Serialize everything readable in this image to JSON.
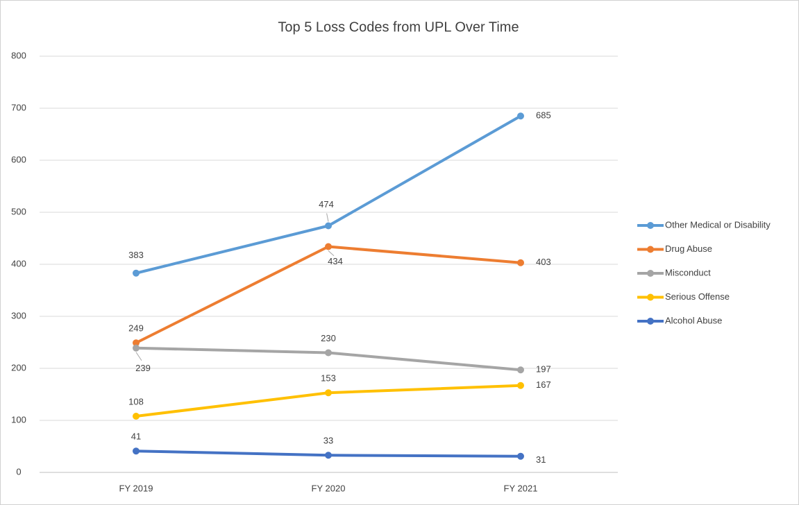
{
  "chart_data": {
    "type": "line",
    "title": "Top 5 Loss Codes from UPL Over Time",
    "categories": [
      "FY 2019",
      "FY 2020",
      "FY 2021"
    ],
    "series": [
      {
        "name": "Other Medical or Disability",
        "color": "#5b9bd5",
        "values": [
          383,
          474,
          685
        ]
      },
      {
        "name": "Drug Abuse",
        "color": "#ed7d31",
        "values": [
          249,
          434,
          403
        ]
      },
      {
        "name": "Misconduct",
        "color": "#a5a5a5",
        "values": [
          239,
          230,
          197
        ]
      },
      {
        "name": "Serious Offense",
        "color": "#ffc000",
        "values": [
          108,
          153,
          167
        ]
      },
      {
        "name": "Alcohol Abuse",
        "color": "#4472c4",
        "values": [
          41,
          33,
          31
        ]
      }
    ],
    "ylim": [
      0,
      800
    ],
    "yticks": [
      0,
      100,
      200,
      300,
      400,
      500,
      600,
      700,
      800
    ],
    "grid": true,
    "legend": "right"
  }
}
